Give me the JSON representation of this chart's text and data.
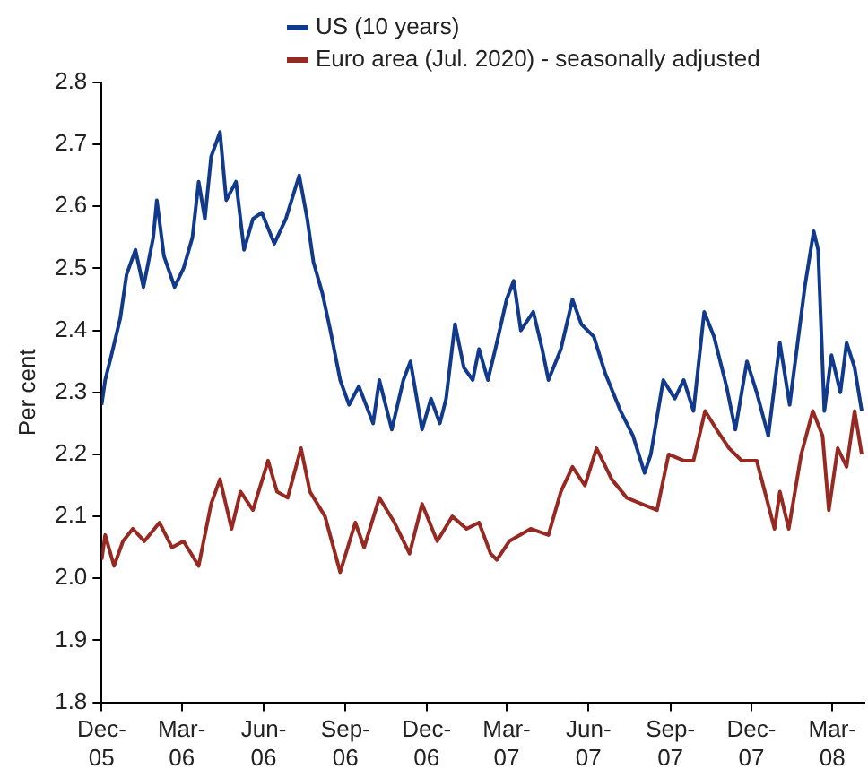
{
  "chart_data": {
    "type": "line",
    "ylabel": "Per cent",
    "xlim": [
      "2005-12-01",
      "2008-04-06"
    ],
    "xticks": [
      {
        "value": "2005-12-01",
        "label": "Dec-05"
      },
      {
        "value": "2006-03-01",
        "label": "Mar-06"
      },
      {
        "value": "2006-06-01",
        "label": "Jun-06"
      },
      {
        "value": "2006-09-01",
        "label": "Sep-06"
      },
      {
        "value": "2006-12-01",
        "label": "Dec-06"
      },
      {
        "value": "2007-03-01",
        "label": "Mar-07"
      },
      {
        "value": "2007-06-01",
        "label": "Jun-07"
      },
      {
        "value": "2007-09-01",
        "label": "Sep-07"
      },
      {
        "value": "2007-12-01",
        "label": "Dec-07"
      },
      {
        "value": "2008-03-01",
        "label": "Mar-08"
      }
    ],
    "ylim": [
      1.8,
      2.8
    ],
    "yticks": [
      1.8,
      1.9,
      {
        "value": 2,
        "label": "2.0"
      },
      2.1,
      2.2,
      2.3,
      2.4,
      2.5,
      2.6,
      2.7,
      2.8
    ],
    "grid": false,
    "legend": "top",
    "marker": "none",
    "line_style": "solid",
    "series": [
      {
        "name": "US (10 years)",
        "color": "#123a8c",
        "x": [
          "2005-12-01",
          "2005-12-05",
          "2005-12-12",
          "2005-12-22",
          "2005-12-29",
          "2006-01-08",
          "2006-01-17",
          "2006-01-28",
          "2006-02-01",
          "2006-02-09",
          "2006-02-21",
          "2006-03-03",
          "2006-03-13",
          "2006-03-20",
          "2006-03-27",
          "2006-04-03",
          "2006-04-13",
          "2006-04-20",
          "2006-05-01",
          "2006-05-10",
          "2006-05-20",
          "2006-05-30",
          "2006-06-13",
          "2006-06-26",
          "2006-07-11",
          "2006-07-20",
          "2006-07-27",
          "2006-08-06",
          "2006-08-15",
          "2006-08-26",
          "2006-09-05",
          "2006-09-16",
          "2006-10-02",
          "2006-10-09",
          "2006-10-23",
          "2006-11-05",
          "2006-11-13",
          "2006-11-26",
          "2006-12-06",
          "2006-12-16",
          "2006-12-23",
          "2007-01-02",
          "2007-01-12",
          "2007-01-22",
          "2007-01-29",
          "2007-02-08",
          "2007-02-18",
          "2007-03-01",
          "2007-03-09",
          "2007-03-17",
          "2007-03-31",
          "2007-04-10",
          "2007-04-17",
          "2007-05-01",
          "2007-05-14",
          "2007-05-24",
          "2007-06-07",
          "2007-06-20",
          "2007-07-07",
          "2007-07-21",
          "2007-08-03",
          "2007-08-10",
          "2007-08-24",
          "2007-09-06",
          "2007-09-16",
          "2007-09-27",
          "2007-10-09",
          "2007-10-20",
          "2007-11-03",
          "2007-11-13",
          "2007-11-26",
          "2007-12-07",
          "2007-12-20",
          "2008-01-02",
          "2008-01-13",
          "2008-01-30",
          "2008-02-09",
          "2008-02-14",
          "2008-02-21",
          "2008-02-29",
          "2008-03-10",
          "2008-03-17",
          "2008-03-26",
          "2008-04-03"
        ],
        "values": [
          2.28,
          2.32,
          2.36,
          2.42,
          2.49,
          2.53,
          2.47,
          2.55,
          2.61,
          2.52,
          2.47,
          2.5,
          2.55,
          2.64,
          2.58,
          2.68,
          2.72,
          2.61,
          2.64,
          2.53,
          2.58,
          2.59,
          2.54,
          2.58,
          2.65,
          2.58,
          2.51,
          2.46,
          2.4,
          2.32,
          2.28,
          2.31,
          2.25,
          2.32,
          2.24,
          2.32,
          2.35,
          2.24,
          2.29,
          2.25,
          2.29,
          2.41,
          2.34,
          2.32,
          2.37,
          2.32,
          2.38,
          2.45,
          2.48,
          2.4,
          2.43,
          2.37,
          2.32,
          2.37,
          2.45,
          2.41,
          2.39,
          2.33,
          2.27,
          2.23,
          2.17,
          2.2,
          2.32,
          2.29,
          2.32,
          2.27,
          2.43,
          2.39,
          2.31,
          2.24,
          2.35,
          2.3,
          2.23,
          2.38,
          2.28,
          2.47,
          2.56,
          2.53,
          2.27,
          2.36,
          2.3,
          2.38,
          2.34,
          2.27
        ]
      },
      {
        "name": "Euro area (Jul. 2020) - seasonally adjusted",
        "color": "#962a22",
        "x": [
          "2005-12-01",
          "2005-12-05",
          "2005-12-15",
          "2005-12-25",
          "2006-01-05",
          "2006-01-18",
          "2006-02-04",
          "2006-02-18",
          "2006-03-03",
          "2006-03-20",
          "2006-04-03",
          "2006-04-13",
          "2006-04-26",
          "2006-05-06",
          "2006-05-20",
          "2006-06-06",
          "2006-06-16",
          "2006-06-28",
          "2006-07-13",
          "2006-07-23",
          "2006-08-09",
          "2006-08-26",
          "2006-09-12",
          "2006-09-22",
          "2006-10-09",
          "2006-10-26",
          "2006-11-12",
          "2006-11-26",
          "2006-12-13",
          "2006-12-30",
          "2007-01-15",
          "2007-01-29",
          "2007-02-11",
          "2007-02-18",
          "2007-03-04",
          "2007-03-28",
          "2007-04-17",
          "2007-05-01",
          "2007-05-14",
          "2007-05-28",
          "2007-06-10",
          "2007-06-27",
          "2007-07-14",
          "2007-07-31",
          "2007-08-17",
          "2007-08-30",
          "2007-09-16",
          "2007-09-27",
          "2007-10-10",
          "2007-10-23",
          "2007-11-06",
          "2007-11-20",
          "2007-12-07",
          "2007-12-27",
          "2008-01-02",
          "2008-01-12",
          "2008-01-26",
          "2008-02-08",
          "2008-02-19",
          "2008-02-26",
          "2008-03-07",
          "2008-03-17",
          "2008-03-26",
          "2008-04-03"
        ],
        "values": [
          2.03,
          2.07,
          2.02,
          2.06,
          2.08,
          2.06,
          2.09,
          2.05,
          2.06,
          2.02,
          2.12,
          2.16,
          2.08,
          2.14,
          2.11,
          2.19,
          2.14,
          2.13,
          2.21,
          2.14,
          2.1,
          2.01,
          2.09,
          2.05,
          2.13,
          2.09,
          2.04,
          2.12,
          2.06,
          2.1,
          2.08,
          2.09,
          2.04,
          2.03,
          2.06,
          2.08,
          2.07,
          2.14,
          2.18,
          2.15,
          2.21,
          2.16,
          2.13,
          2.12,
          2.11,
          2.2,
          2.19,
          2.19,
          2.27,
          2.24,
          2.21,
          2.19,
          2.19,
          2.08,
          2.14,
          2.08,
          2.2,
          2.27,
          2.23,
          2.11,
          2.21,
          2.18,
          2.27,
          2.2
        ]
      }
    ]
  }
}
